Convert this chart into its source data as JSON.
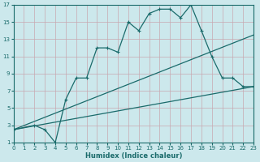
{
  "xlabel": "Humidex (Indice chaleur)",
  "xlim": [
    0,
    23
  ],
  "ylim": [
    1,
    17
  ],
  "xticks": [
    0,
    1,
    2,
    3,
    4,
    5,
    6,
    7,
    8,
    9,
    10,
    11,
    12,
    13,
    14,
    15,
    16,
    17,
    18,
    19,
    20,
    21,
    22,
    23
  ],
  "yticks": [
    1,
    3,
    5,
    7,
    9,
    11,
    13,
    15,
    17
  ],
  "bg_color": "#cce8ec",
  "grid_color_minor": "#c0dde2",
  "grid_color_major": "#aaccd4",
  "line_color": "#1a6b6b",
  "series1_x": [
    0,
    2,
    3,
    4,
    5,
    6,
    7,
    8,
    9,
    10,
    11,
    12,
    13,
    14,
    15,
    16,
    17,
    18,
    19,
    20,
    21,
    22,
    23
  ],
  "series1_y": [
    2.5,
    3,
    2.5,
    1,
    6,
    8.5,
    8.5,
    12,
    12,
    11.5,
    15,
    14,
    16,
    16.5,
    16.5,
    15.5,
    17,
    14,
    11,
    8.5,
    8.5,
    7.5,
    7.5
  ],
  "series2_x": [
    0,
    23
  ],
  "series2_y": [
    2.5,
    7.5
  ],
  "series3_x": [
    0,
    23
  ],
  "series3_y": [
    2.5,
    13.5
  ]
}
